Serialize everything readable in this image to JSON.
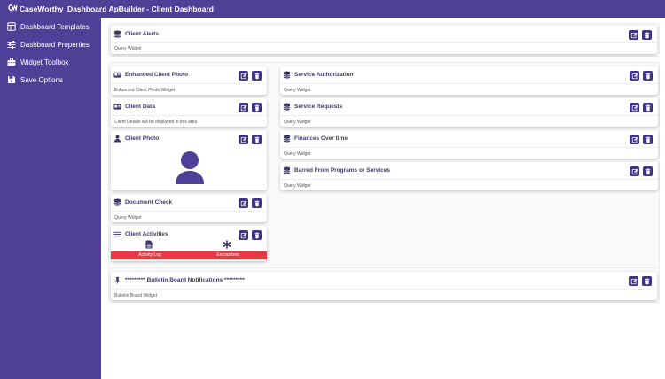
{
  "header": {
    "logo_text": "CaseWorthy",
    "title": "Dashboard ApBuilder - Client Dashboard"
  },
  "sidebar": {
    "items": [
      {
        "label": "Dashboard Templates",
        "icon": "template-icon"
      },
      {
        "label": "Dashboard Properties",
        "icon": "sliders-icon"
      },
      {
        "label": "Widget Toolbox",
        "icon": "toolbox-icon"
      },
      {
        "label": "Save Options",
        "icon": "save-icon"
      }
    ]
  },
  "widgets": {
    "client_alerts": {
      "title": "Client Alerts",
      "sub": "Query Widget",
      "icon": "database-icon"
    },
    "enhanced_photo": {
      "title": "Enhanced Client Photo",
      "sub": "Enhanced Client Photo Widget",
      "icon": "id-card-icon"
    },
    "client_data": {
      "title": "Client Data",
      "sub": "Client Details will be displayed in this area",
      "icon": "id-card-icon"
    },
    "client_photo": {
      "title": "Client Photo",
      "icon": "user-icon"
    },
    "document_check": {
      "title": "Document Check",
      "sub": "Query Widget",
      "icon": "database-icon"
    },
    "client_activities": {
      "title": "Client Activities",
      "icon": "list-icon",
      "tabs": [
        "Activity Log",
        "Encounters"
      ]
    },
    "service_authorization": {
      "title": "Service Authorization",
      "sub": "Query Widget",
      "icon": "database-icon"
    },
    "service_requests": {
      "title": "Service Requests",
      "sub": "Query Widget",
      "icon": "database-icon"
    },
    "finances": {
      "title": "Finances Over time",
      "sub": "Query Widget",
      "icon": "database-icon"
    },
    "barred": {
      "title": "Barred From Programs or Services",
      "sub": "Query Widget",
      "icon": "database-icon"
    },
    "bulletin": {
      "title": "********* Bulletin Board Notifications *********",
      "sub": "Bulletin Board Widget",
      "icon": "pin-icon"
    }
  },
  "colors": {
    "brand": "#4f3f96",
    "button": "#3e3481",
    "tab": "#e23b44"
  }
}
